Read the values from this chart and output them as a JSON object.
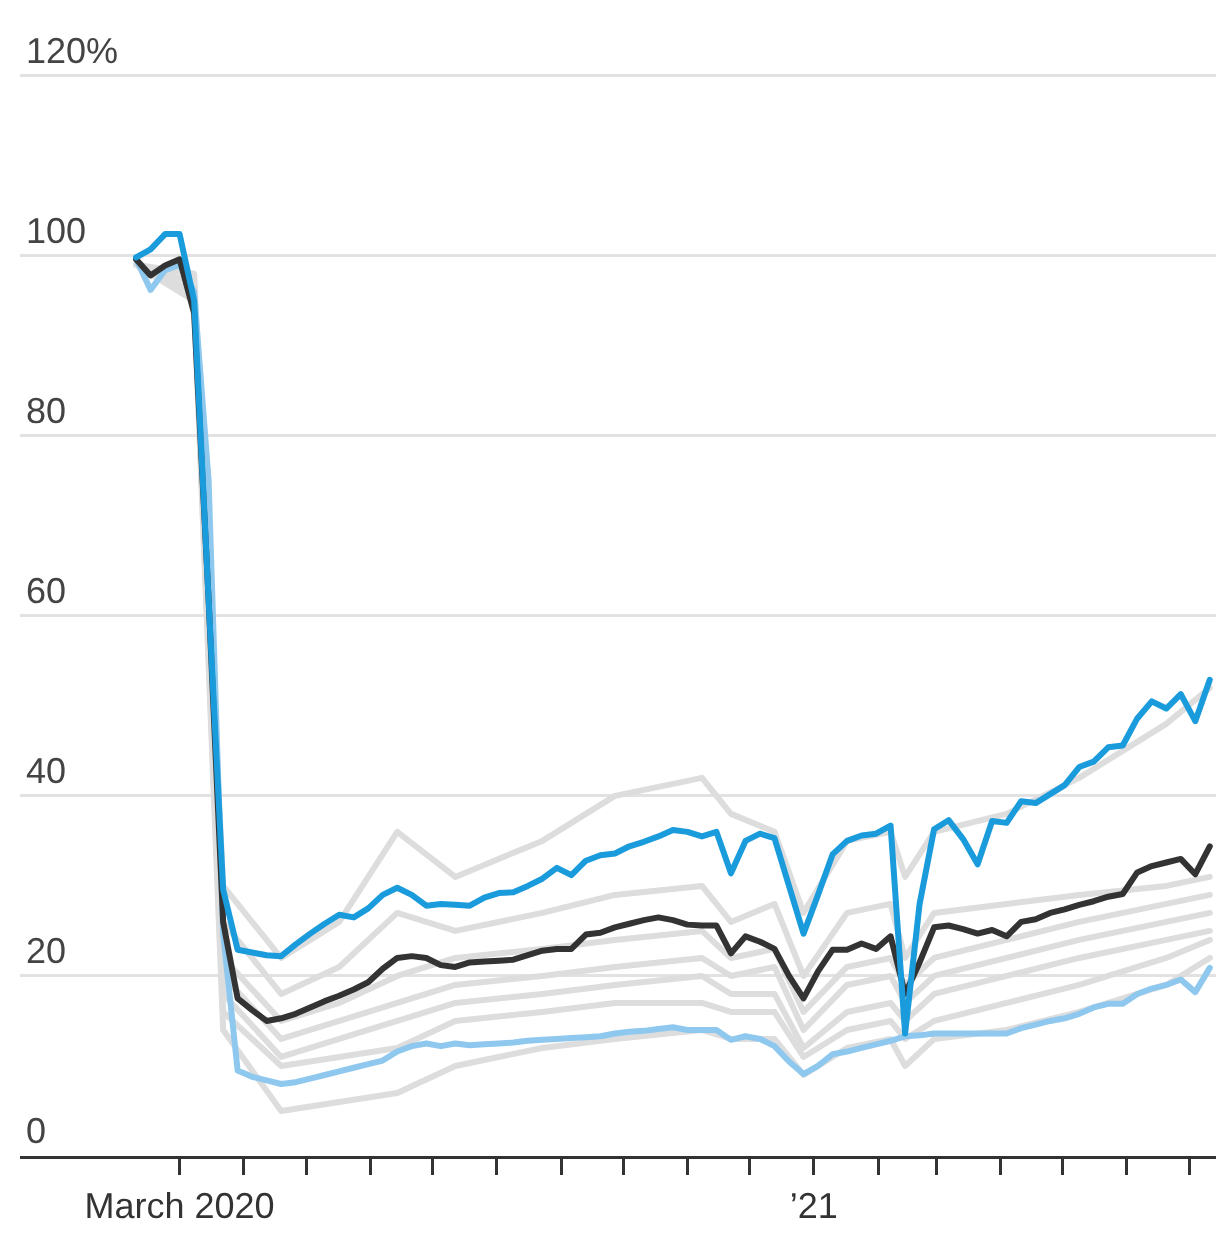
{
  "chart_data": {
    "type": "line",
    "x": [
      "2020-02-09",
      "2020-02-16",
      "2020-02-23",
      "2020-03-01",
      "2020-03-08",
      "2020-03-15",
      "2020-03-22",
      "2020-03-29",
      "2020-04-05",
      "2020-04-12",
      "2020-04-19",
      "2020-04-26",
      "2020-05-03",
      "2020-05-10",
      "2020-05-17",
      "2020-05-24",
      "2020-05-31",
      "2020-06-07",
      "2020-06-14",
      "2020-06-21",
      "2020-06-28",
      "2020-07-05",
      "2020-07-12",
      "2020-07-19",
      "2020-07-26",
      "2020-08-02",
      "2020-08-09",
      "2020-08-16",
      "2020-08-23",
      "2020-08-30",
      "2020-09-06",
      "2020-09-13",
      "2020-09-20",
      "2020-09-27",
      "2020-10-04",
      "2020-10-11",
      "2020-10-18",
      "2020-10-25",
      "2020-11-01",
      "2020-11-08",
      "2020-11-15",
      "2020-11-22",
      "2020-11-29",
      "2020-12-06",
      "2020-12-13",
      "2020-12-20",
      "2020-12-27",
      "2021-01-03",
      "2021-01-10",
      "2021-01-17",
      "2021-01-24",
      "2021-01-31",
      "2021-02-07",
      "2021-02-14",
      "2021-02-21",
      "2021-02-28",
      "2021-03-07",
      "2021-03-14",
      "2021-03-21",
      "2021-03-28",
      "2021-04-04",
      "2021-04-11",
      "2021-04-18",
      "2021-04-25",
      "2021-05-02",
      "2021-05-09",
      "2021-05-16",
      "2021-05-23",
      "2021-05-30",
      "2021-06-06",
      "2021-06-13",
      "2021-06-20",
      "2021-06-27",
      "2021-07-04",
      "2021-07-11"
    ],
    "series": [
      {
        "color": "#dddddd",
        "x": [
          "2020-02-09",
          "2020-03-08",
          "2020-03-22",
          "2020-04-19",
          "2020-05-17",
          "2020-06-14",
          "2020-07-12",
          "2020-08-23",
          "2020-09-27",
          "2020-11-08",
          "2020-11-22",
          "2020-12-13",
          "2020-12-27",
          "2021-01-17",
          "2021-02-07",
          "2021-02-14",
          "2021-02-28",
          "2021-04-04",
          "2021-05-09",
          "2021-06-20",
          "2021-07-11"
        ],
        "values": [
          99,
          98,
          30,
          22,
          26,
          36,
          31,
          35,
          40,
          42,
          38,
          36,
          27,
          35,
          36,
          31,
          36,
          38,
          42,
          48,
          52
        ]
      },
      {
        "color": "#dddddd",
        "x": [
          "2020-02-09",
          "2020-03-08",
          "2020-03-22",
          "2020-04-19",
          "2020-05-17",
          "2020-06-14",
          "2020-07-12",
          "2020-08-23",
          "2020-09-27",
          "2020-11-08",
          "2020-11-22",
          "2020-12-13",
          "2020-12-27",
          "2021-01-17",
          "2021-02-07",
          "2021-02-14",
          "2021-02-28",
          "2021-04-04",
          "2021-05-09",
          "2021-06-20",
          "2021-07-11"
        ],
        "values": [
          99,
          97,
          26,
          18,
          21,
          27,
          25,
          27,
          29,
          30,
          26,
          28,
          20,
          27,
          28,
          22,
          27,
          28,
          29,
          30,
          31
        ]
      },
      {
        "color": "#dddddd",
        "x": [
          "2020-02-09",
          "2020-03-08",
          "2020-03-22",
          "2020-04-19",
          "2020-05-17",
          "2020-06-14",
          "2020-07-12",
          "2020-08-23",
          "2020-09-27",
          "2020-11-08",
          "2020-11-22",
          "2020-12-13",
          "2020-12-27",
          "2021-01-17",
          "2021-02-07",
          "2021-02-14",
          "2021-02-28",
          "2021-04-04",
          "2021-05-09",
          "2021-06-20",
          "2021-07-11"
        ],
        "values": [
          99,
          96,
          22,
          15,
          17,
          20,
          22,
          23,
          24,
          25,
          22,
          23,
          16,
          21,
          22,
          19,
          22,
          24,
          26,
          28,
          29
        ]
      },
      {
        "color": "#dddddd",
        "x": [
          "2020-02-09",
          "2020-03-08",
          "2020-03-22",
          "2020-04-19",
          "2020-05-17",
          "2020-06-14",
          "2020-07-12",
          "2020-08-23",
          "2020-09-27",
          "2020-11-08",
          "2020-11-22",
          "2020-12-13",
          "2020-12-27",
          "2021-01-17",
          "2021-02-07",
          "2021-02-14",
          "2021-02-28",
          "2021-04-04",
          "2021-05-09",
          "2021-06-20",
          "2021-07-11"
        ],
        "values": [
          99,
          96,
          20,
          13,
          15,
          17,
          19,
          20,
          21,
          22,
          20,
          21,
          14,
          19,
          20,
          17,
          20,
          22,
          24,
          26,
          27
        ]
      },
      {
        "color": "#dddddd",
        "x": [
          "2020-02-09",
          "2020-03-08",
          "2020-03-22",
          "2020-04-19",
          "2020-05-17",
          "2020-06-14",
          "2020-07-12",
          "2020-08-23",
          "2020-09-27",
          "2020-11-08",
          "2020-11-22",
          "2020-12-13",
          "2020-12-27",
          "2021-01-17",
          "2021-02-07",
          "2021-02-14",
          "2021-02-28",
          "2021-04-04",
          "2021-05-09",
          "2021-06-20",
          "2021-07-11"
        ],
        "values": [
          99,
          96,
          18,
          11,
          13,
          15,
          17,
          18,
          19,
          20,
          18,
          18,
          12,
          16,
          17,
          15,
          18,
          20,
          22,
          24,
          25
        ]
      },
      {
        "color": "#dddddd",
        "x": [
          "2020-02-09",
          "2020-03-08",
          "2020-03-22",
          "2020-04-19",
          "2020-05-17",
          "2020-06-14",
          "2020-07-12",
          "2020-08-23",
          "2020-09-27",
          "2020-11-08",
          "2020-11-22",
          "2020-12-13",
          "2020-12-27",
          "2021-01-17",
          "2021-02-07",
          "2021-02-14",
          "2021-02-28",
          "2021-04-04",
          "2021-05-09",
          "2021-06-20",
          "2021-07-11"
        ],
        "values": [
          99,
          95,
          16,
          10,
          11,
          12,
          15,
          16,
          17,
          17,
          16,
          16,
          11,
          14,
          15,
          13,
          15,
          17,
          19,
          22,
          24
        ]
      },
      {
        "color": "#dddddd",
        "x": [
          "2020-02-09",
          "2020-03-08",
          "2020-03-22",
          "2020-04-19",
          "2020-05-17",
          "2020-06-14",
          "2020-07-12",
          "2020-08-23",
          "2020-09-27",
          "2020-11-08",
          "2020-11-22",
          "2020-12-13",
          "2020-12-27",
          "2021-01-17",
          "2021-02-07",
          "2021-02-14",
          "2021-02-28",
          "2021-04-04",
          "2021-05-09",
          "2021-06-20",
          "2021-07-11"
        ],
        "values": [
          99,
          95,
          14,
          5,
          6,
          7,
          10,
          12,
          13,
          14,
          13,
          13,
          9,
          12,
          13,
          10,
          13,
          14,
          16,
          19,
          22
        ]
      },
      {
        "color": "#8ec8ee",
        "values": [
          99.6,
          96.2,
          98.4,
          99,
          96,
          75,
          24.7,
          9.5,
          8.8,
          8.4,
          8,
          8.2,
          8.6,
          9,
          9.4,
          9.8,
          10.2,
          10.6,
          11.6,
          12.2,
          12.5,
          12.2,
          12.5,
          12.3,
          12.4,
          12.5,
          12.6,
          12.8,
          12.9,
          13,
          13.1,
          13.2,
          13.3,
          13.6,
          13.8,
          13.9,
          14.1,
          14.3,
          14,
          14,
          14,
          12.9,
          13.3,
          13,
          12.2,
          10.5,
          9.1,
          10,
          11.3,
          11.6,
          12,
          12.4,
          12.8,
          13.3,
          13.4,
          13.6,
          13.6,
          13.6,
          13.6,
          13.6,
          13.6,
          14.2,
          14.6,
          15,
          15.3,
          15.8,
          16.5,
          16.9,
          16.9,
          18,
          18.6,
          19,
          19.6,
          18.2,
          20.9
        ]
      },
      {
        "color": "#333333",
        "values": [
          99.6,
          97.8,
          98.9,
          99.6,
          93.6,
          61.8,
          26,
          17.5,
          16.2,
          15,
          15.3,
          15.8,
          16.5,
          17.2,
          17.8,
          18.5,
          19.3,
          20.8,
          22,
          22.2,
          22,
          21.2,
          21,
          21.5,
          21.6,
          21.7,
          21.8,
          22.3,
          22.8,
          23,
          23,
          24.6,
          24.8,
          25.4,
          25.8,
          26.2,
          26.5,
          26.2,
          25.7,
          25.6,
          25.6,
          22.5,
          24.4,
          23.8,
          23,
          20,
          17.5,
          20.5,
          22.9,
          22.9,
          23.6,
          23,
          24.4,
          18,
          21.5,
          25.4,
          25.6,
          25.2,
          24.7,
          25.1,
          24.4,
          26,
          26.3,
          27,
          27.4,
          27.9,
          28.3,
          28.8,
          29.1,
          31.5,
          32.2,
          32.6,
          33,
          31.3,
          34.4
        ]
      },
      {
        "color": "#1a9bdb",
        "values": [
          99.8,
          100.7,
          102.4,
          102.4,
          95,
          61.8,
          29.6,
          22.9,
          22.6,
          22.3,
          22.2,
          23.5,
          24.7,
          25.8,
          26.8,
          26.5,
          27.5,
          29,
          29.8,
          29,
          27.8,
          28,
          27.9,
          27.8,
          28.7,
          29.2,
          29.3,
          30,
          30.8,
          32,
          31.2,
          32.8,
          33.4,
          33.6,
          34.4,
          34.9,
          35.5,
          36.2,
          36,
          35.5,
          36,
          31.4,
          35,
          35.8,
          35.3,
          30,
          24.7,
          29,
          33.5,
          35,
          35.6,
          35.8,
          36.7,
          13.6,
          28,
          36.3,
          37.3,
          35.2,
          32.4,
          37.2,
          37,
          39.4,
          39.2,
          40.2,
          41.2,
          43.2,
          43.8,
          45.4,
          45.6,
          48.6,
          50.5,
          49.7,
          51.3,
          48.3,
          52.9
        ]
      }
    ],
    "xlim": [
      "2019-12-15",
      "2021-07-14"
    ],
    "xticks": [
      {
        "value": "2020-03-01",
        "label": "March 2020"
      },
      {
        "value": "2020-04-01",
        "label": null
      },
      {
        "value": "2020-05-01",
        "label": null
      },
      {
        "value": "2020-06-01",
        "label": null
      },
      {
        "value": "2020-07-01",
        "label": null
      },
      {
        "value": "2020-08-01",
        "label": null
      },
      {
        "value": "2020-09-01",
        "label": null
      },
      {
        "value": "2020-10-01",
        "label": null
      },
      {
        "value": "2020-11-01",
        "label": null
      },
      {
        "value": "2020-12-01",
        "label": null
      },
      {
        "value": "2021-01-01",
        "label": "’21"
      },
      {
        "value": "2021-02-01",
        "label": null
      },
      {
        "value": "2021-03-01",
        "label": null
      },
      {
        "value": "2021-04-01",
        "label": null
      },
      {
        "value": "2021-05-01",
        "label": null
      },
      {
        "value": "2021-06-01",
        "label": null
      },
      {
        "value": "2021-07-01",
        "label": null
      }
    ],
    "ylim": [
      0,
      128.4
    ],
    "yticks": [
      0,
      20,
      40,
      60,
      80,
      100,
      {
        "value": 120,
        "label": "120%"
      }
    ],
    "grid": "y",
    "legend": false,
    "marker": "none",
    "line_style": "solid"
  }
}
